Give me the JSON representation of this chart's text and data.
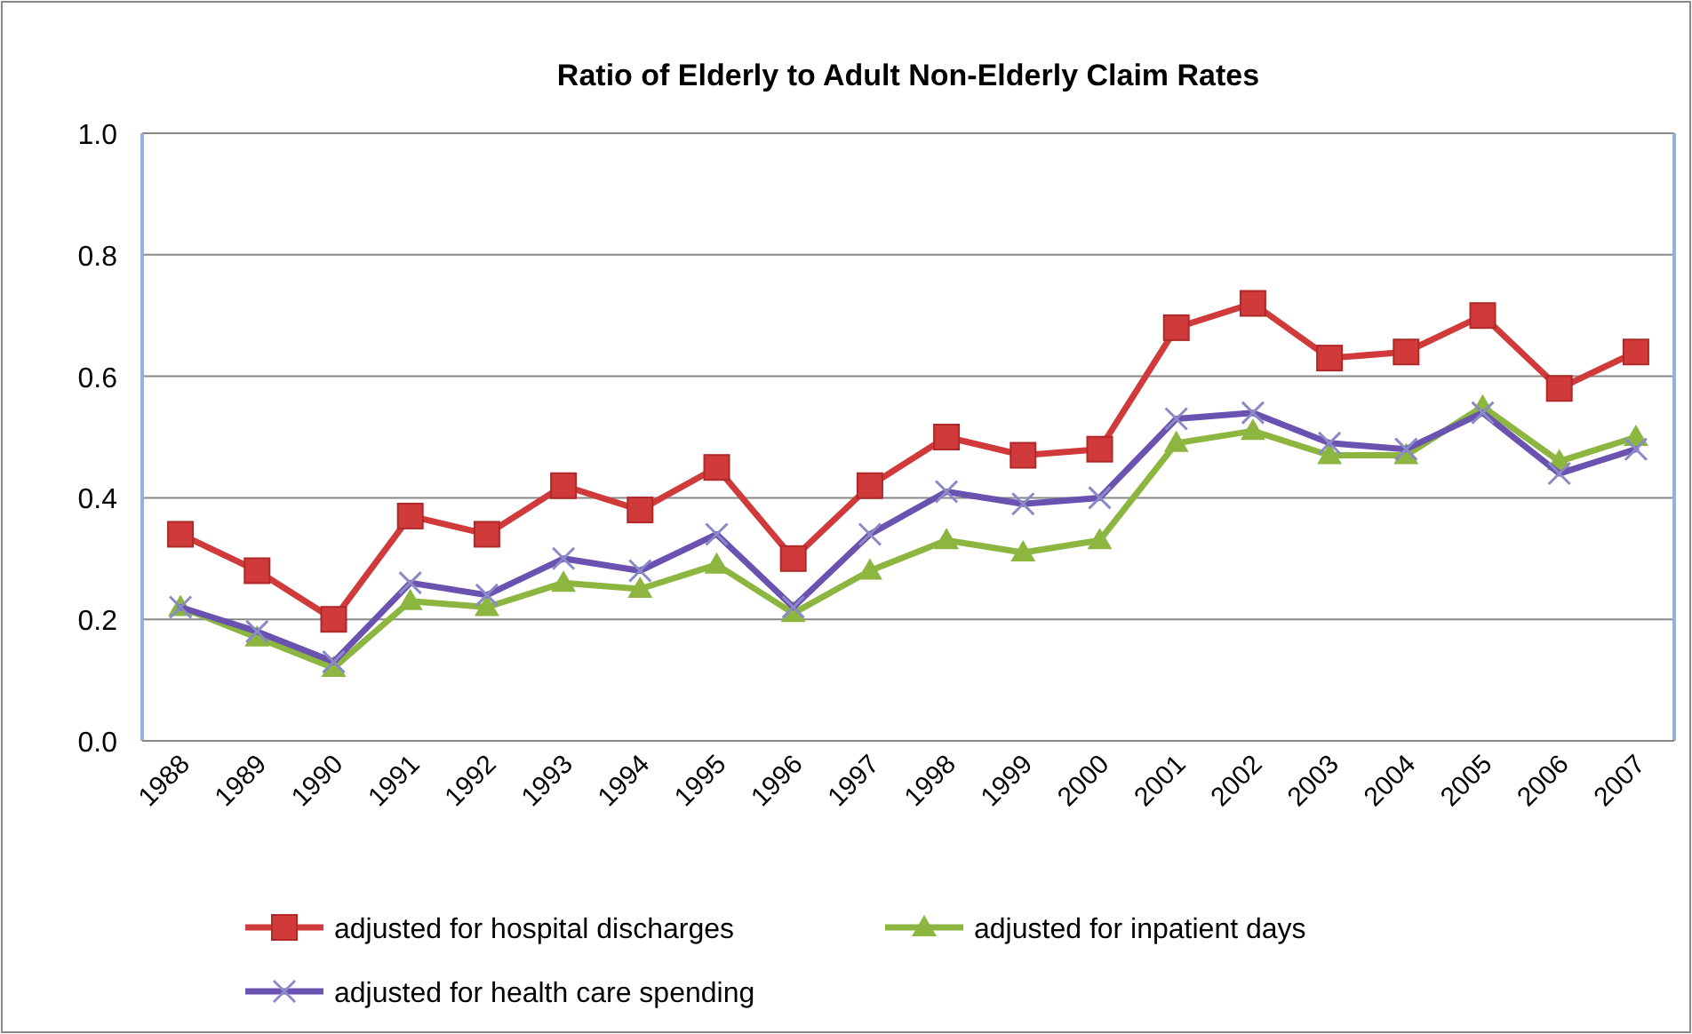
{
  "chart_data": {
    "type": "line",
    "title": "Ratio of Elderly to Adult Non-Elderly Claim Rates",
    "categories": [
      "1988",
      "1989",
      "1990",
      "1991",
      "1992",
      "1993",
      "1994",
      "1995",
      "1996",
      "1997",
      "1998",
      "1999",
      "2000",
      "2001",
      "2002",
      "2003",
      "2004",
      "2005",
      "2006",
      "2007"
    ],
    "series": [
      {
        "name": "adjusted for hospital discharges",
        "color": "#d03a3a",
        "marker": "square",
        "values": [
          0.34,
          0.28,
          0.2,
          0.37,
          0.34,
          0.42,
          0.38,
          0.45,
          0.3,
          0.42,
          0.5,
          0.47,
          0.48,
          0.68,
          0.72,
          0.63,
          0.64,
          0.7,
          0.58,
          0.64
        ]
      },
      {
        "name": "adjusted for inpatient days",
        "color": "#8db640",
        "marker": "triangle",
        "values": [
          0.22,
          0.17,
          0.12,
          0.23,
          0.22,
          0.26,
          0.25,
          0.29,
          0.21,
          0.28,
          0.33,
          0.31,
          0.33,
          0.49,
          0.51,
          0.47,
          0.47,
          0.55,
          0.46,
          0.5
        ]
      },
      {
        "name": "adjusted for health care spending",
        "color": "#6a52b0",
        "marker": "cross",
        "values": [
          0.22,
          0.18,
          0.13,
          0.26,
          0.24,
          0.3,
          0.28,
          0.34,
          0.22,
          0.34,
          0.41,
          0.39,
          0.4,
          0.53,
          0.54,
          0.49,
          0.48,
          0.54,
          0.44,
          0.48
        ]
      }
    ],
    "ylim": [
      0,
      1
    ],
    "yticks": [
      {
        "value": 0,
        "label": "0.0"
      },
      0.2,
      0.4,
      0.6,
      0.8,
      {
        "value": 1,
        "label": "1.0"
      }
    ],
    "grid": "y",
    "legend": "bottom",
    "line_style": "solid"
  }
}
